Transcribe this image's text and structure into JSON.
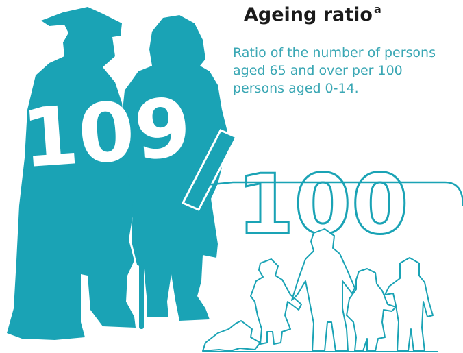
{
  "title": "Ageing ratio",
  "title_note": "a",
  "description": [
    "Ratio of the number of persons",
    "aged 65 and over per 100",
    "persons aged 0-14."
  ],
  "ratio": {
    "elderly": "109",
    "children": "100",
    "separator": "/"
  },
  "colors": {
    "accent": "#1aa3b5",
    "text": "#1a1a1a",
    "description": "#3aa7b4"
  },
  "icons": [
    "elderly-couple-silhouette-icon",
    "children-outline-icon"
  ]
}
